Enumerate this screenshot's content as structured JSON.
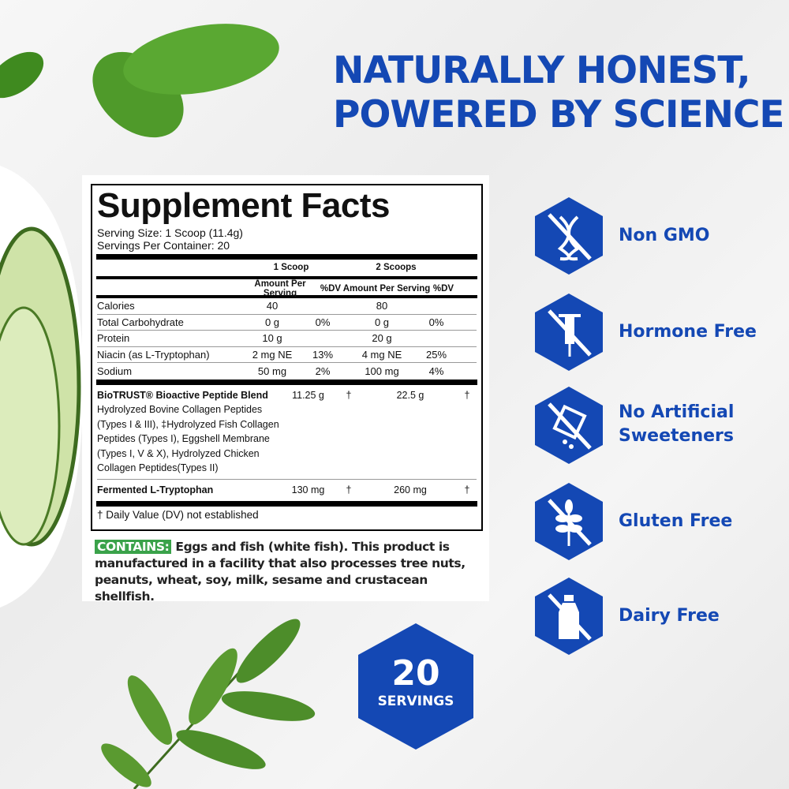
{
  "headline": {
    "line1": "NATURALLY HONEST,",
    "line2": "POWERED BY SCIENCE"
  },
  "facts": {
    "title": "Supplement Facts",
    "serving_size": "Serving Size: 1 Scoop (11.4g)",
    "servings_per_container": "Servings Per Container: 20",
    "col_1": "1 Scoop",
    "col_2": "2 Scoops",
    "amount_header": "Amount Per Serving",
    "dv_header": "%DV",
    "rows": [
      {
        "name": "Calories",
        "a1": "40",
        "d1": "",
        "a2": "80",
        "d2": ""
      },
      {
        "name": "Total Carbohydrate",
        "a1": "0 g",
        "d1": "0%",
        "a2": "0 g",
        "d2": "0%"
      },
      {
        "name": "Protein",
        "a1": "10 g",
        "d1": "",
        "a2": "20 g",
        "d2": ""
      },
      {
        "name": "Niacin (as L-Tryptophan)",
        "a1": "2 mg NE",
        "d1": "13%",
        "a2": "4 mg NE",
        "d2": "25%"
      },
      {
        "name": "Sodium",
        "a1": "50 mg",
        "d1": "2%",
        "a2": "100 mg",
        "d2": "4%"
      }
    ],
    "blend": {
      "name": "BioTRUST® Bioactive Peptide Blend",
      "desc": "Hydrolyzed Bovine Collagen Peptides (Types I & III), ‡Hydrolyzed Fish Collagen Peptides (Types I), Eggshell Membrane (Types I, V & X), Hydrolyzed Chicken Collagen Peptides(Types II)",
      "a1": "11.25 g",
      "d1": "†",
      "a2": "22.5 g",
      "d2": "†"
    },
    "tryptophan": {
      "name": "Fermented L-Tryptophan",
      "a1": "130 mg",
      "d1": "†",
      "a2": "260 mg",
      "d2": "†"
    },
    "footnote": "† Daily Value (DV) not established"
  },
  "contains": {
    "tag": "CONTAINS:",
    "text": "Eggs and fish (white fish). This product is manufactured in a facility that also processes tree nuts, peanuts, wheat, soy, milk, sesame and crustacean shellfish."
  },
  "badges": [
    {
      "icon": "dna-icon",
      "label": "Non GMO"
    },
    {
      "icon": "syringe-icon",
      "label": "Hormone Free"
    },
    {
      "icon": "sweetener-packet-icon",
      "label1": "No Artificial",
      "label2": "Sweeteners"
    },
    {
      "icon": "wheat-icon",
      "label": "Gluten Free"
    },
    {
      "icon": "milk-bottle-icon",
      "label": "Dairy Free"
    }
  ],
  "servings": {
    "number": "20",
    "label": "SERVINGS"
  },
  "colors": {
    "brand_blue": "#1448b4",
    "contains_green": "#3aa24a"
  }
}
